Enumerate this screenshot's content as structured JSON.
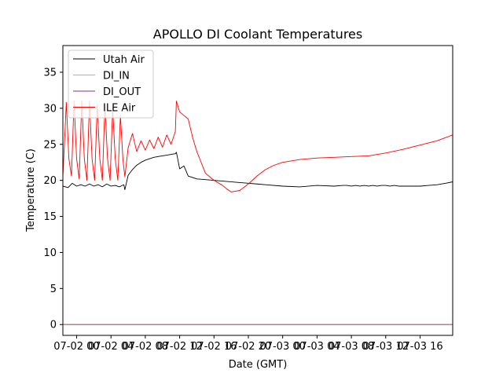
{
  "chart_data": {
    "type": "line",
    "title": "APOLLO DI Coolant Temperatures",
    "xlabel": "Date (GMT)",
    "ylabel": "Temperature (C)",
    "xlim": [
      -1.6,
      43.8
    ],
    "ylim": [
      -1.5,
      38.7
    ],
    "x_unit": "hours since 2021-07-02 00:00 GMT",
    "yticks": [
      0,
      5,
      10,
      15,
      20,
      25,
      30,
      35
    ],
    "xticks": [
      {
        "value": 0,
        "label": "07-02 00"
      },
      {
        "value": 4,
        "label": "07-02 04"
      },
      {
        "value": 8,
        "label": "07-02 08"
      },
      {
        "value": 12,
        "label": "07-02 12"
      },
      {
        "value": 16,
        "label": "07-02 16"
      },
      {
        "value": 20,
        "label": "07-02 20"
      },
      {
        "value": 24,
        "label": "07-03 00"
      },
      {
        "value": 28,
        "label": "07-03 04"
      },
      {
        "value": 32,
        "label": "07-03 08"
      },
      {
        "value": 36,
        "label": "07-03 12"
      },
      {
        "value": 40,
        "label": "07-03 16"
      }
    ],
    "grid": false,
    "legend_location": "upper-left",
    "series": [
      {
        "name": "Utah Air",
        "color": "#000000",
        "x": [
          -1.6,
          -1.0,
          -0.5,
          0,
          0.5,
          1.0,
          1.5,
          2.0,
          2.5,
          3.0,
          3.5,
          4.0,
          4.5,
          5.0,
          5.5,
          5.62,
          6.0,
          6.5,
          7.0,
          7.5,
          8.0,
          8.5,
          9.0,
          9.5,
          10.0,
          10.5,
          11.0,
          11.5,
          11.62,
          12.0,
          12.5,
          13.0,
          13.5,
          14.0,
          15,
          17,
          19,
          20,
          21,
          22,
          24,
          26,
          28,
          30,
          31,
          31.5,
          32,
          32.5,
          33,
          33.5,
          34,
          34.5,
          35,
          35.5,
          36,
          36.5,
          37,
          37.5,
          38,
          39,
          40,
          41,
          42,
          43,
          43.8
        ],
        "y": [
          19.2,
          19.0,
          19.6,
          19.2,
          19.4,
          19.2,
          19.5,
          19.2,
          19.4,
          19.1,
          19.5,
          19.2,
          19.3,
          19.1,
          19.4,
          18.7,
          20.7,
          21.5,
          22.1,
          22.5,
          22.8,
          23.0,
          23.2,
          23.3,
          23.4,
          23.5,
          23.6,
          23.7,
          23.9,
          21.6,
          22.0,
          20.6,
          20.4,
          20.2,
          20.1,
          19.9,
          19.7,
          19.6,
          19.5,
          19.4,
          19.2,
          19.1,
          19.3,
          19.2,
          19.3,
          19.3,
          19.2,
          19.3,
          19.2,
          19.3,
          19.2,
          19.3,
          19.2,
          19.3,
          19.3,
          19.2,
          19.3,
          19.2,
          19.2,
          19.2,
          19.2,
          19.3,
          19.4,
          19.6,
          19.8
        ]
      },
      {
        "name": "DI_IN",
        "color": "#d4b43a",
        "x": [
          -1.6,
          43.8
        ],
        "y": [
          0.02,
          0.02
        ]
      },
      {
        "name": "DI_OUT",
        "color": "#8a2f93",
        "x": [
          -1.6,
          43.8
        ],
        "y": [
          0.0,
          0.0
        ]
      },
      {
        "name": "ILE Air",
        "color": "#ff0000",
        "x": [
          -1.6,
          -1.2,
          -0.9,
          -0.6,
          -0.3,
          0,
          0.3,
          0.6,
          0.9,
          1.2,
          1.5,
          1.8,
          2.1,
          2.4,
          2.7,
          3.0,
          3.3,
          3.6,
          3.9,
          4.2,
          4.5,
          4.8,
          5.1,
          5.4,
          5.62,
          6.0,
          6.5,
          7.0,
          7.5,
          8.0,
          8.5,
          9.0,
          9.5,
          10.0,
          10.5,
          11.0,
          11.5,
          11.62,
          12.0,
          12.5,
          13.0,
          13.5,
          14.0,
          15,
          16,
          17,
          17.5,
          18,
          19,
          20,
          21,
          22,
          23,
          24,
          26,
          28,
          30,
          32,
          34,
          36,
          38,
          40,
          42,
          43.8
        ],
        "y": [
          20.5,
          30.8,
          23.0,
          20.6,
          31.0,
          23.0,
          20.2,
          31.0,
          23.0,
          20.0,
          31.0,
          23.0,
          20.0,
          30.5,
          23.0,
          20.0,
          30.5,
          23.0,
          20.0,
          30.0,
          23.0,
          20.0,
          29.0,
          22.8,
          20.5,
          24.5,
          26.5,
          24.0,
          25.5,
          24.2,
          25.6,
          24.4,
          26.0,
          24.6,
          26.3,
          25.0,
          26.8,
          31.0,
          29.5,
          29.0,
          28.5,
          26.0,
          24.0,
          21.0,
          20.0,
          19.3,
          18.8,
          18.4,
          18.6,
          19.5,
          20.6,
          21.5,
          22.1,
          22.5,
          22.9,
          23.1,
          23.2,
          23.3,
          23.4,
          23.8,
          24.3,
          24.9,
          25.5,
          26.3
        ]
      }
    ]
  }
}
